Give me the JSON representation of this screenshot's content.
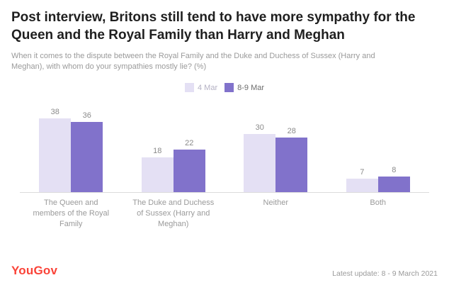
{
  "header": {
    "title": "Post interview, Britons still tend to have more sympathy for the Queen and the Royal Family than Harry and Meghan",
    "subtitle": "When it comes to the dispute between the Royal Family and the Duke and Duchess of Sussex (Harry and Meghan), with whom do your sympathies mostly lie? (%)"
  },
  "legend": [
    {
      "label": "4 Mar",
      "color": "#e4e0f4"
    },
    {
      "label": "8-9 Mar",
      "color": "#8172cb"
    }
  ],
  "chart_data": {
    "type": "bar",
    "categories": [
      "The Queen and members of the Royal Family",
      "The Duke and Duchess of Sussex (Harry and Meghan)",
      "Neither",
      "Both"
    ],
    "series": [
      {
        "name": "4 Mar",
        "color": "#e4e0f4",
        "values": [
          38,
          18,
          30,
          7
        ]
      },
      {
        "name": "8-9 Mar",
        "color": "#8172cb",
        "values": [
          36,
          22,
          28,
          8
        ]
      }
    ],
    "title": "Post interview, Britons still tend to have more sympathy for the Queen and the Royal Family than Harry and Meghan",
    "xlabel": "",
    "ylabel": "",
    "ylim": [
      0,
      40
    ],
    "grid": false,
    "legend_position": "top-center",
    "value_labels": true
  },
  "footer": {
    "logo": "YouGov",
    "update": "Latest update: 8 - 9 March 2021"
  },
  "colors": {
    "accent_light": "#e4e0f4",
    "accent_dark": "#8172cb",
    "brand_red": "#fa4338",
    "text_dark": "#1f1f1f",
    "text_gray": "#9a9a9a",
    "axis": "#dcdcdc"
  }
}
